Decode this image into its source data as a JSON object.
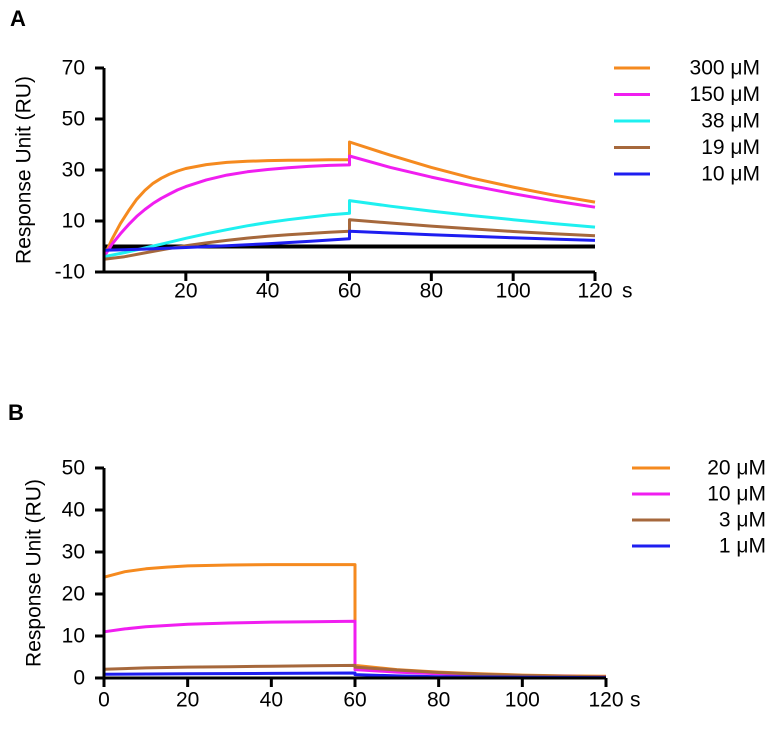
{
  "chart_data": [
    {
      "panel": "A",
      "type": "line",
      "ylabel": "Response Unit (RU)",
      "xunit": "s",
      "xlim": [
        0,
        120
      ],
      "ylim": [
        -10,
        70
      ],
      "xticks": [
        20,
        40,
        60,
        80,
        100,
        120
      ],
      "yticks": [
        -10,
        10,
        30,
        50,
        70
      ],
      "legend_position": "right",
      "series": [
        {
          "name": "300 μM",
          "color": "#F58A1F",
          "points": [
            [
              0,
              -4
            ],
            [
              2,
              3
            ],
            [
              4,
              9
            ],
            [
              6,
              14
            ],
            [
              8,
              18.5
            ],
            [
              10,
              22
            ],
            [
              12,
              24.8
            ],
            [
              14,
              26.8
            ],
            [
              16,
              28.4
            ],
            [
              18,
              29.6
            ],
            [
              20,
              30.6
            ],
            [
              25,
              32.1
            ],
            [
              30,
              33
            ],
            [
              35,
              33.4
            ],
            [
              40,
              33.7
            ],
            [
              45,
              33.8
            ],
            [
              50,
              33.9
            ],
            [
              55,
              34
            ],
            [
              60,
              34
            ],
            [
              60,
              41
            ],
            [
              70,
              35.8
            ],
            [
              80,
              31
            ],
            [
              90,
              26.8
            ],
            [
              100,
              23.3
            ],
            [
              110,
              20.1
            ],
            [
              120,
              17.4
            ]
          ]
        },
        {
          "name": "150 μM",
          "color": "#F01EF0",
          "points": [
            [
              0,
              -4
            ],
            [
              2,
              1
            ],
            [
              4,
              5
            ],
            [
              6,
              8.6
            ],
            [
              8,
              11.8
            ],
            [
              10,
              14.5
            ],
            [
              12,
              16.9
            ],
            [
              14,
              18.9
            ],
            [
              16,
              20.6
            ],
            [
              18,
              22.2
            ],
            [
              20,
              23.5
            ],
            [
              25,
              26.1
            ],
            [
              30,
              28
            ],
            [
              35,
              29.3
            ],
            [
              40,
              30.2
            ],
            [
              45,
              30.9
            ],
            [
              50,
              31.4
            ],
            [
              55,
              31.8
            ],
            [
              60,
              32
            ],
            [
              60,
              35.5
            ],
            [
              70,
              31
            ],
            [
              80,
              27.2
            ],
            [
              90,
              23.8
            ],
            [
              100,
              20.7
            ],
            [
              110,
              17.9
            ],
            [
              120,
              15.4
            ]
          ]
        },
        {
          "name": "38 μM",
          "color": "#1EF0F0",
          "points": [
            [
              0,
              -4
            ],
            [
              5,
              -2.4
            ],
            [
              10,
              -0.6
            ],
            [
              15,
              1.3
            ],
            [
              20,
              3.2
            ],
            [
              25,
              5
            ],
            [
              30,
              6.6
            ],
            [
              35,
              8.1
            ],
            [
              40,
              9.4
            ],
            [
              45,
              10.5
            ],
            [
              50,
              11.5
            ],
            [
              55,
              12.4
            ],
            [
              60,
              13
            ],
            [
              60,
              18
            ],
            [
              70,
              15.8
            ],
            [
              80,
              13.9
            ],
            [
              90,
              12.1
            ],
            [
              100,
              10.5
            ],
            [
              110,
              9
            ],
            [
              120,
              7.6
            ]
          ]
        },
        {
          "name": "19 μM",
          "color": "#A6683C",
          "points": [
            [
              0,
              -5
            ],
            [
              5,
              -4
            ],
            [
              10,
              -2.5
            ],
            [
              15,
              -1
            ],
            [
              20,
              0.3
            ],
            [
              25,
              1.4
            ],
            [
              30,
              2.4
            ],
            [
              35,
              3.3
            ],
            [
              40,
              4
            ],
            [
              45,
              4.6
            ],
            [
              50,
              5.1
            ],
            [
              55,
              5.6
            ],
            [
              60,
              6
            ],
            [
              60,
              10.5
            ],
            [
              70,
              9.2
            ],
            [
              80,
              8
            ],
            [
              90,
              6.9
            ],
            [
              100,
              5.9
            ],
            [
              110,
              5
            ],
            [
              120,
              4.2
            ]
          ]
        },
        {
          "name": "10 μM",
          "color": "#1E1EF0",
          "points": [
            [
              0,
              -1.5
            ],
            [
              10,
              -1
            ],
            [
              20,
              -0.4
            ],
            [
              30,
              0.3
            ],
            [
              40,
              1.1
            ],
            [
              50,
              2
            ],
            [
              60,
              3
            ],
            [
              60,
              6
            ],
            [
              70,
              5.3
            ],
            [
              80,
              4.6
            ],
            [
              90,
              4
            ],
            [
              100,
              3.4
            ],
            [
              110,
              2.9
            ],
            [
              120,
              2.4
            ]
          ]
        }
      ]
    },
    {
      "panel": "B",
      "type": "line",
      "ylabel": "Response Unit (RU)",
      "xunit": "s",
      "xlim": [
        0,
        120
      ],
      "ylim": [
        0,
        50
      ],
      "xticks": [
        0,
        20,
        40,
        60,
        80,
        100,
        120
      ],
      "yticks": [
        0,
        10,
        20,
        30,
        40,
        50
      ],
      "legend_position": "right",
      "series": [
        {
          "name": "20 μM",
          "color": "#F58A1F",
          "points": [
            [
              0,
              0
            ],
            [
              0,
              24
            ],
            [
              5,
              25.3
            ],
            [
              10,
              26
            ],
            [
              15,
              26.4
            ],
            [
              20,
              26.7
            ],
            [
              30,
              26.9
            ],
            [
              40,
              27
            ],
            [
              50,
              27
            ],
            [
              60,
              27
            ],
            [
              60,
              3
            ],
            [
              70,
              2
            ],
            [
              80,
              1.4
            ],
            [
              90,
              1
            ],
            [
              100,
              0.7
            ],
            [
              110,
              0.5
            ],
            [
              120,
              0.4
            ]
          ]
        },
        {
          "name": "10 μM",
          "color": "#F01EF0",
          "points": [
            [
              0,
              0
            ],
            [
              0,
              11
            ],
            [
              5,
              11.7
            ],
            [
              10,
              12.2
            ],
            [
              20,
              12.8
            ],
            [
              30,
              13.1
            ],
            [
              40,
              13.3
            ],
            [
              50,
              13.4
            ],
            [
              60,
              13.5
            ],
            [
              60,
              2
            ],
            [
              70,
              1.4
            ],
            [
              80,
              1
            ],
            [
              90,
              0.7
            ],
            [
              100,
              0.5
            ],
            [
              110,
              0.4
            ],
            [
              120,
              0.3
            ]
          ]
        },
        {
          "name": "3 μM",
          "color": "#A6683C",
          "points": [
            [
              0,
              0
            ],
            [
              0,
              2.1
            ],
            [
              10,
              2.4
            ],
            [
              20,
              2.6
            ],
            [
              30,
              2.7
            ],
            [
              40,
              2.8
            ],
            [
              50,
              2.9
            ],
            [
              60,
              3
            ],
            [
              60,
              2.6
            ],
            [
              70,
              1.9
            ],
            [
              80,
              1.3
            ],
            [
              90,
              0.9
            ],
            [
              100,
              0.6
            ],
            [
              110,
              0.4
            ],
            [
              120,
              0.3
            ]
          ]
        },
        {
          "name": "1 μM",
          "color": "#1E1EF0",
          "points": [
            [
              0,
              0
            ],
            [
              0,
              0.9
            ],
            [
              20,
              1
            ],
            [
              40,
              1.1
            ],
            [
              60,
              1.2
            ],
            [
              60,
              0.8
            ],
            [
              70,
              0.5
            ],
            [
              80,
              0.3
            ],
            [
              100,
              0.2
            ],
            [
              120,
              0.1
            ]
          ]
        }
      ]
    }
  ]
}
